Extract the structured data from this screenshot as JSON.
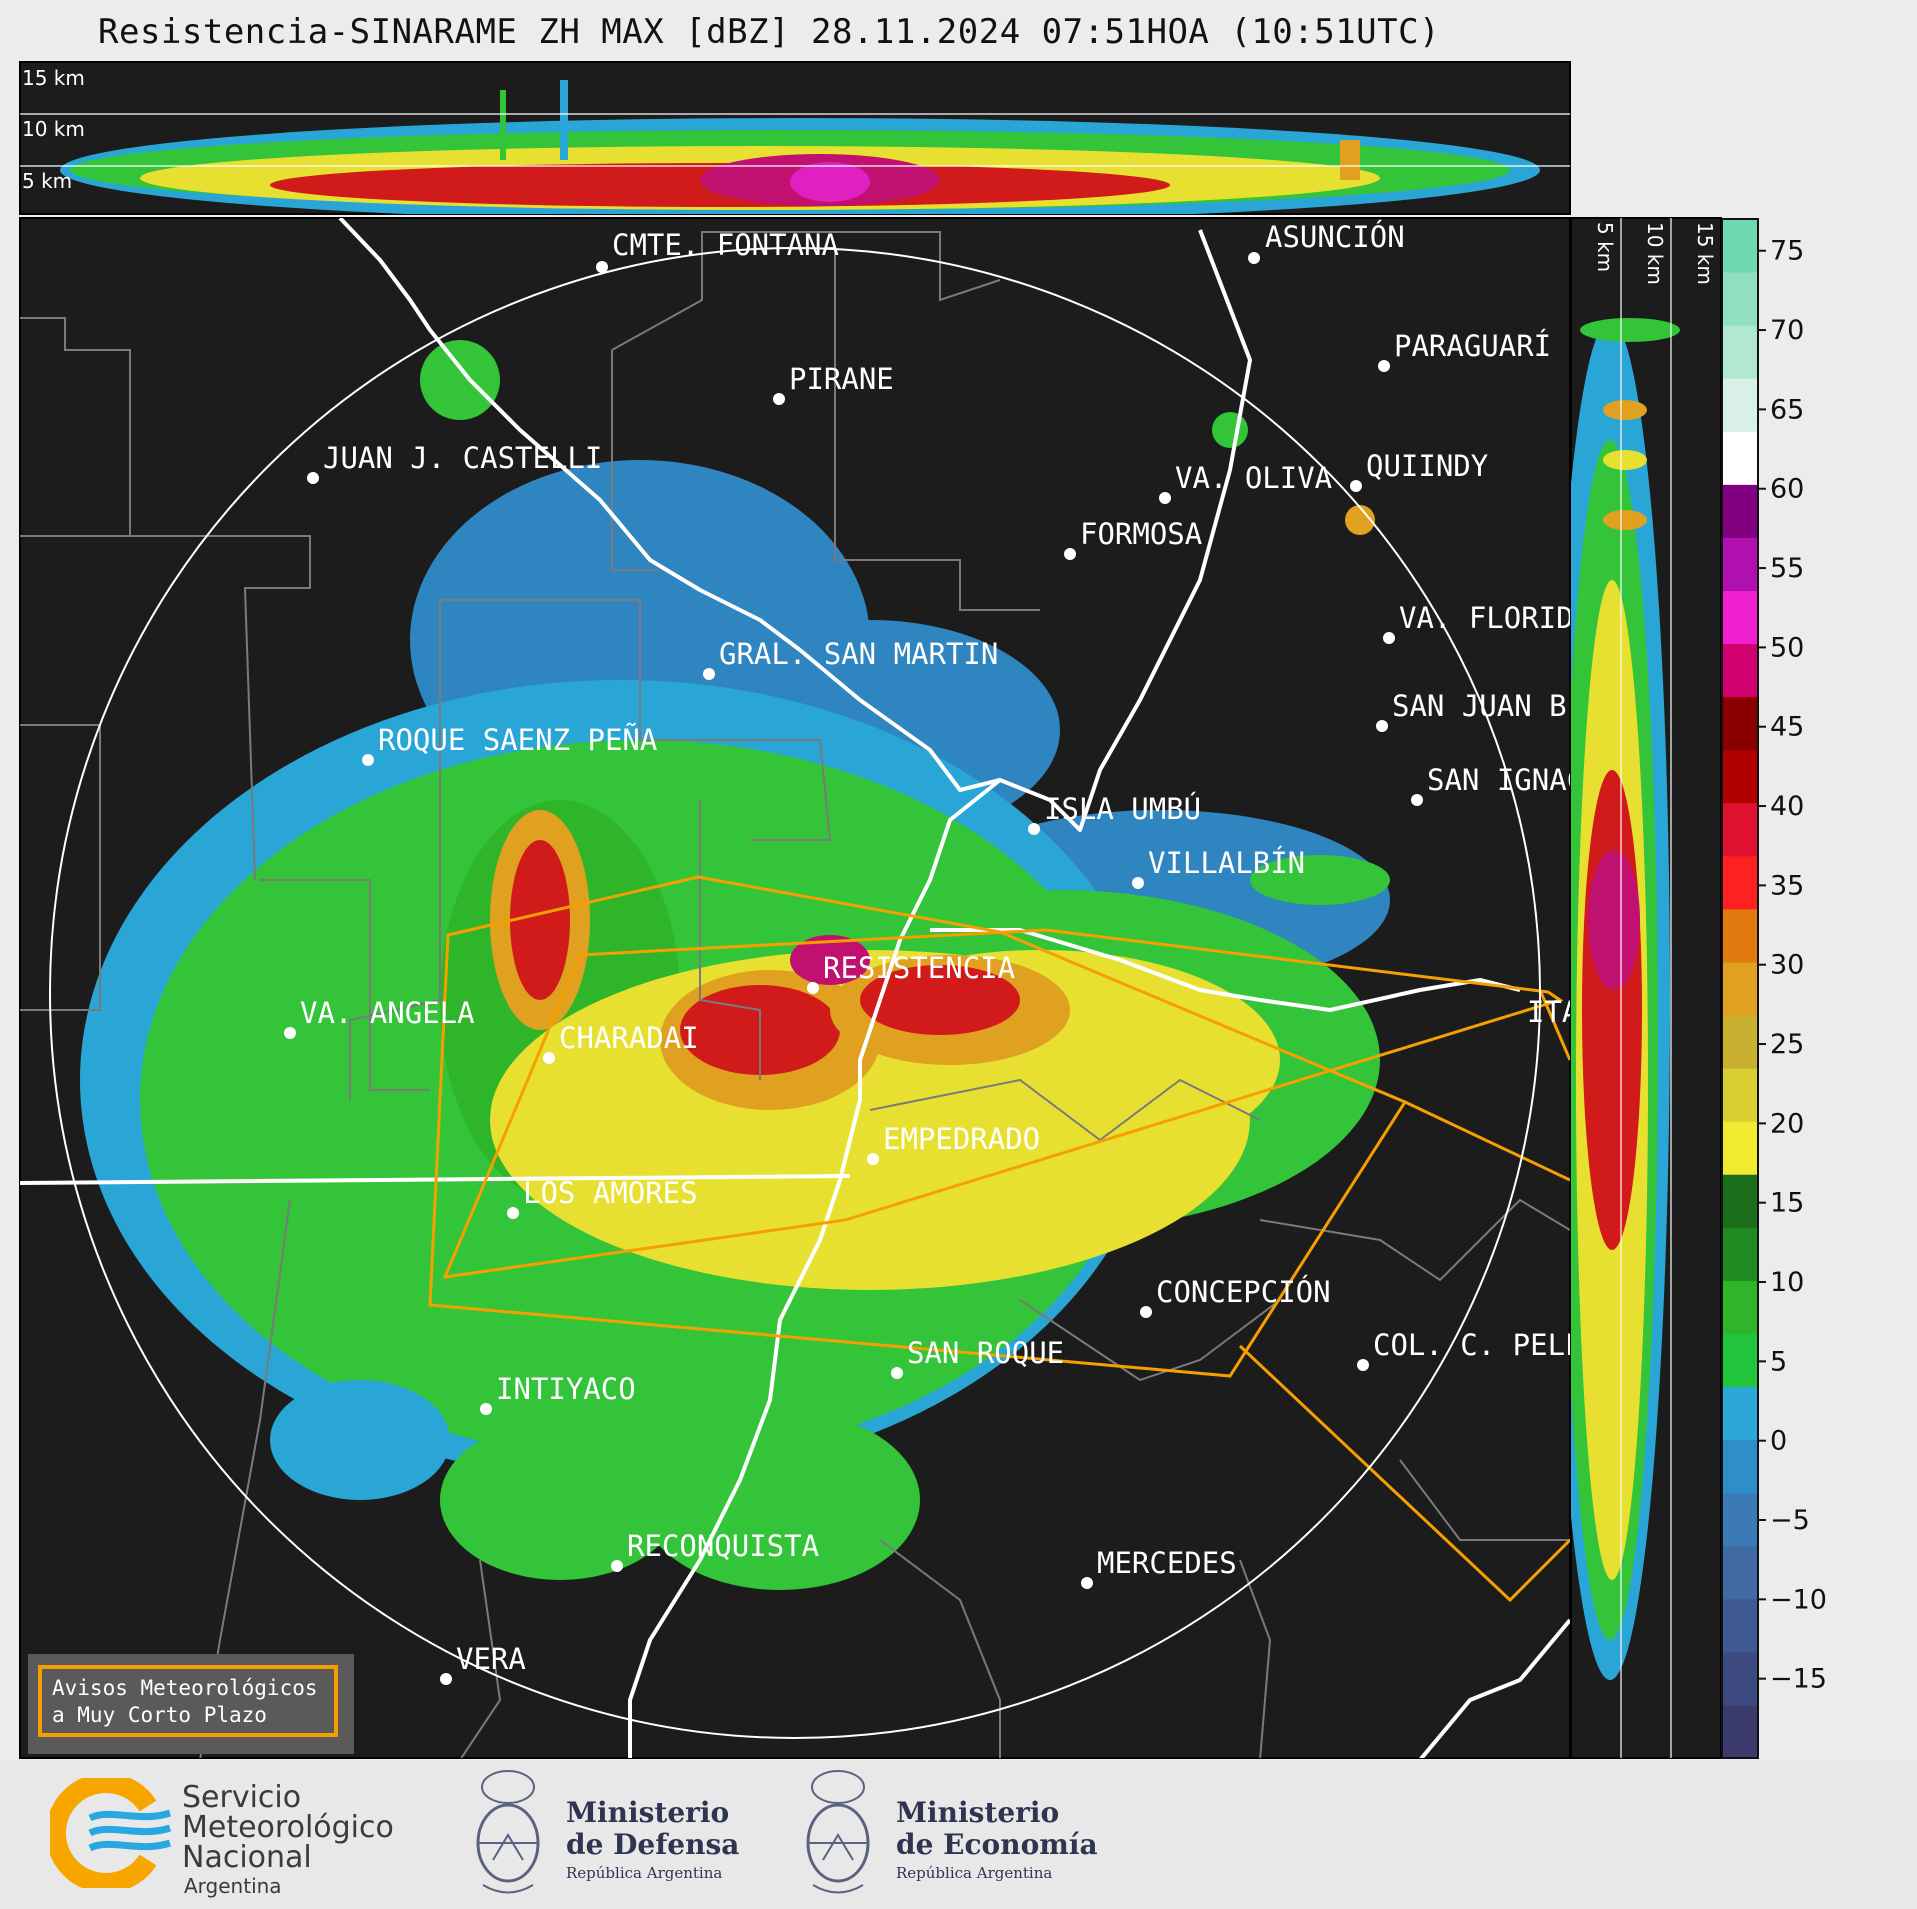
{
  "title": "Resistencia-SINARAME ZH MAX [dBZ] 28.11.2024 07:51HOA (10:51UTC)",
  "top_panel_altitudes": [
    "15 km",
    "10 km",
    "5 km"
  ],
  "side_panel_altitudes": [
    "5 km",
    "10 km",
    "15 km"
  ],
  "colorbar": {
    "ticks": [
      "75",
      "70",
      "65",
      "60",
      "55",
      "50",
      "45",
      "40",
      "35",
      "30",
      "25",
      "20",
      "15",
      "10",
      "5",
      "0",
      "−5",
      "−10",
      "−15"
    ],
    "colors": [
      "#3b3b6e",
      "#3d4a80",
      "#3f5a92",
      "#3f6aa4",
      "#3b7ab5",
      "#2e8ec7",
      "#2ba7d8",
      "#22c43c",
      "#2fb52a",
      "#1f8a1f",
      "#1c6e1c",
      "#f0ea30",
      "#d8d030",
      "#c9b030",
      "#e0a020",
      "#e07a10",
      "#ff2020",
      "#e01030",
      "#b00000",
      "#8a0000",
      "#d0006e",
      "#f020d0",
      "#b010b0",
      "#800080",
      "#ffffff",
      "#d8f0e8",
      "#b0e8d0",
      "#90e0c0",
      "#70d8b0"
    ],
    "range": [
      -20,
      77
    ]
  },
  "cities": [
    {
      "name": "CMTE. FONTANA"
    },
    {
      "name": "ASUNCIÓN"
    },
    {
      "name": "PIRANE"
    },
    {
      "name": "PARAGUARÍ"
    },
    {
      "name": "JUAN J. CASTELLI"
    },
    {
      "name": "VA. OLIVA"
    },
    {
      "name": "QUIINDY"
    },
    {
      "name": "FORMOSA"
    },
    {
      "name": "VA. FLORIDA"
    },
    {
      "name": "GRAL. SAN MARTIN"
    },
    {
      "name": "SAN JUAN B."
    },
    {
      "name": "ROQUE SAENZ PEÑA"
    },
    {
      "name": "SAN IGNACIO"
    },
    {
      "name": "ISLA UMBÚ"
    },
    {
      "name": "VILLALBÍN"
    },
    {
      "name": "RESISTENCIA"
    },
    {
      "name": "VA. ANGELA"
    },
    {
      "name": "CHARADAI"
    },
    {
      "name": "ITATÍ"
    },
    {
      "name": "EMPEDRADO"
    },
    {
      "name": "LOS AMORES"
    },
    {
      "name": "CONCEPCIÓN"
    },
    {
      "name": "SAN ROQUE"
    },
    {
      "name": "COL. C. PELLEGRINI"
    },
    {
      "name": "INTIYACO"
    },
    {
      "name": "RECONQUISTA"
    },
    {
      "name": "MERCEDES"
    },
    {
      "name": "VERA"
    }
  ],
  "warning": {
    "line1": "Avisos Meteorológicos",
    "line2": "a Muy Corto Plazo"
  },
  "footer": {
    "smn": {
      "line1": "Servicio",
      "line2": "Meteorológico",
      "line3": "Nacional",
      "line4": "Argentina"
    },
    "defensa": {
      "line1": "Ministerio",
      "line2": "de Defensa",
      "line3": "República Argentina"
    },
    "economia": {
      "line1": "Ministerio",
      "line2": "de Economía",
      "line3": "República Argentina"
    }
  },
  "colors": {
    "map_bg": "#1c1c1c",
    "warning_orange": "#f5a000",
    "border_white": "#ffffff",
    "grid_gray": "#7a7a7a"
  }
}
